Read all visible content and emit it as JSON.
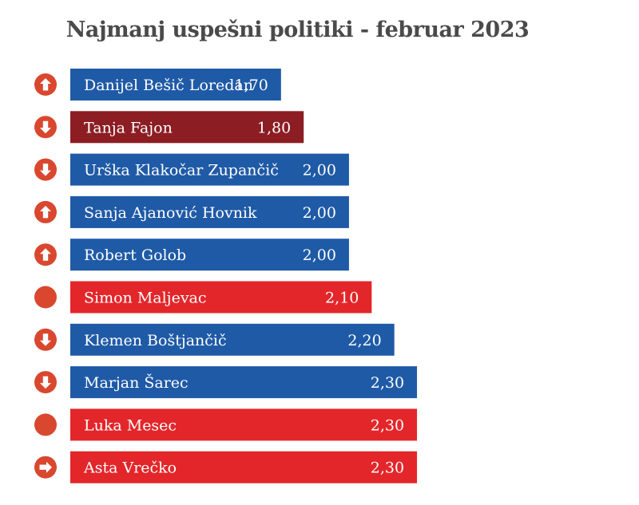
{
  "chart_data": {
    "type": "bar",
    "orientation": "horizontal",
    "title": "Najmanj uspešni politiki - februar 2023",
    "grid": false,
    "legend": "none",
    "xlim": [
      0,
      2.3
    ],
    "colors": {
      "blue": "#1f5aa6",
      "red": "#e3262a",
      "dark_red": "#8b1d23",
      "icon": "#d9472f"
    },
    "categories": [
      "Danijel Bešič Loredan",
      "Tanja Fajon",
      "Urška Klakočar Zupančič",
      "Sanja Ajanović Hovnik",
      "Robert Golob",
      "Simon Maljevac",
      "Klemen Boštjančič",
      "Marjan Šarec",
      "Luka Mesec",
      "Asta Vrečko"
    ],
    "values": [
      1.7,
      1.8,
      2.0,
      2.0,
      2.0,
      2.1,
      2.2,
      2.3,
      2.3,
      2.3
    ],
    "value_labels": [
      "1,70",
      "1,80",
      "2,00",
      "2,00",
      "2,00",
      "2,10",
      "2,20",
      "2,30",
      "2,30",
      "2,30"
    ],
    "bar_colors": [
      "blue",
      "dark_red",
      "blue",
      "blue",
      "blue",
      "red",
      "blue",
      "blue",
      "red",
      "red"
    ],
    "trend_icons": [
      "arrow-up",
      "arrow-down",
      "arrow-down",
      "arrow-up",
      "arrow-up",
      "dot",
      "arrow-down",
      "arrow-down",
      "dot",
      "arrow-right"
    ]
  }
}
